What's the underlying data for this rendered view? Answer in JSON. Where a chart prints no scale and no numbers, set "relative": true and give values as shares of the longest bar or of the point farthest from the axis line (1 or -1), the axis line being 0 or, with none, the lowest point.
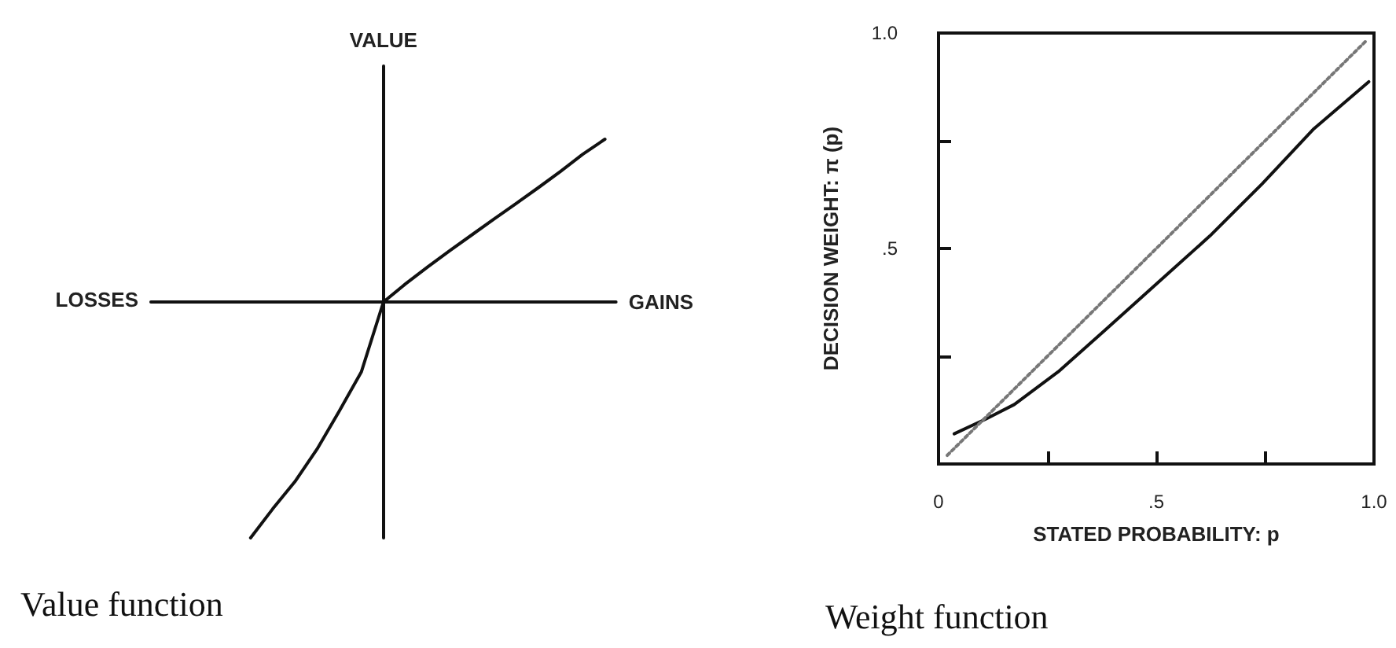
{
  "chart_data": [
    {
      "type": "line",
      "title": "Value function",
      "xlabel": "GAINS",
      "ylabel": "VALUE",
      "annotations": [
        "LOSSES"
      ],
      "relative": true,
      "marker": "none",
      "grid": false,
      "color": "#111111",
      "categories": [
        null,
        null,
        null,
        null,
        null,
        null,
        null,
        null,
        null,
        null,
        null,
        null,
        null,
        null,
        null,
        null,
        null,
        null,
        null,
        null,
        null
      ],
      "values": [
        null,
        null,
        null,
        null,
        -1,
        -0.877,
        -0.762,
        -0.624,
        -0.463,
        -0.297,
        0,
        0.077,
        0.149,
        0.218,
        0.285,
        0.352,
        0.418,
        0.485,
        0.554,
        0.626,
        0.69
      ]
    },
    {
      "type": "line",
      "title": "Weight function",
      "xlabel": "STATED PROBABILITY: p",
      "ylabel": "DECISION WEIGHT: π (p)",
      "marker": "none",
      "grid": false,
      "xlim": [
        0,
        1
      ],
      "ylim": [
        0,
        1
      ],
      "xticks": [
        {
          "value": 0,
          "label": "0"
        },
        {
          "value": 0.25,
          "label": null
        },
        {
          "value": 0.5,
          "label": ".5"
        },
        {
          "value": 0.75,
          "label": null
        },
        {
          "value": 1,
          "label": "1.0"
        }
      ],
      "yticks": [
        {
          "value": 0,
          "label": null
        },
        {
          "value": 0.25,
          "label": null
        },
        {
          "value": 0.5,
          "label": ".5"
        },
        {
          "value": 0.75,
          "label": null
        },
        {
          "value": 1,
          "label": "1.0"
        }
      ],
      "series": [
        {
          "color": "#111111",
          "line_style": "solid",
          "x": [
            0.036,
            0.108,
            0.174,
            0.275,
            0.383,
            0.503,
            0.623,
            0.743,
            0.862,
            0.988
          ],
          "values": [
            0.07,
            0.104,
            0.138,
            0.214,
            0.311,
            0.42,
            0.529,
            0.65,
            0.778,
            0.887
          ]
        },
        {
          "color": "#777777",
          "line_style": "dotted",
          "x": [
            0.02,
            0.98
          ],
          "values": [
            0.02,
            0.98
          ]
        }
      ]
    }
  ]
}
